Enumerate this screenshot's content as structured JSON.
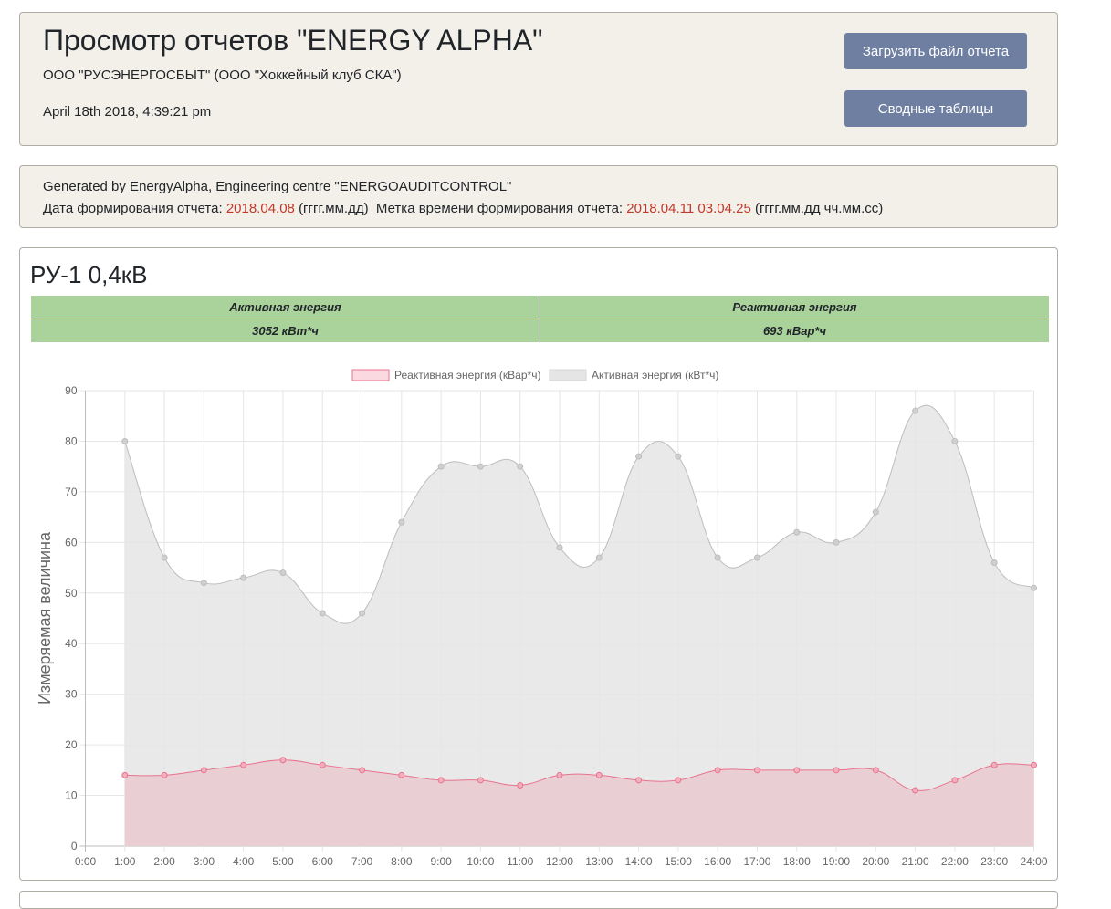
{
  "header": {
    "title": "Просмотр отчетов \"ENERGY ALPHA\"",
    "organization": "ООО \"РУСЭНЕРГОСБЫТ\" (ООО \"Хоккейный клуб СКА\")",
    "datetime": "April 18th 2018, 4:39:21 pm",
    "upload_button": "Загрузить файл отчета",
    "summary_button": "Сводные таблицы"
  },
  "generated": {
    "line1": "Generated by EnergyAlpha, Engineering centre \"ENERGOAUDITCONTROL\"",
    "date_label": "Дата формирования отчета:",
    "date_value": "2018.04.08",
    "date_format": "(гггг.мм.дд)",
    "timestamp_label": "Метка времени формирования отчета:",
    "timestamp_value": "2018.04.11 03.04.25",
    "timestamp_format": "(гггг.мм.дд чч.мм.сс)"
  },
  "section": {
    "title": "РУ-1 0,4кВ",
    "active_label": "Активная энергия",
    "active_value": "3052 кВт*ч",
    "reactive_label": "Реактивная энергия",
    "reactive_value": "693 кВар*ч"
  },
  "chart_data": {
    "type": "area",
    "ylabel": "Измеряемая величина",
    "xlabel": "",
    "ylim": [
      0,
      90
    ],
    "yticks": [
      0,
      10,
      20,
      30,
      40,
      50,
      60,
      70,
      80,
      90
    ],
    "x_tick_labels": [
      "0:00",
      "1:00",
      "2:00",
      "3:00",
      "4:00",
      "5:00",
      "6:00",
      "7:00",
      "8:00",
      "9:00",
      "10:00",
      "11:00",
      "12:00",
      "13:00",
      "14:00",
      "15:00",
      "16:00",
      "17:00",
      "18:00",
      "19:00",
      "20:00",
      "21:00",
      "22:00",
      "23:00",
      "24:00"
    ],
    "categories": [
      "1:00",
      "2:00",
      "3:00",
      "4:00",
      "5:00",
      "6:00",
      "7:00",
      "8:00",
      "9:00",
      "10:00",
      "11:00",
      "12:00",
      "13:00",
      "14:00",
      "15:00",
      "16:00",
      "17:00",
      "18:00",
      "19:00",
      "20:00",
      "21:00",
      "22:00",
      "23:00",
      "24:00"
    ],
    "grid": true,
    "legend_position": "top",
    "series": [
      {
        "name": "Реактивная энергия (кВар*ч)",
        "color": "#e8738f",
        "fill": "#e9c9cf",
        "values": [
          14,
          14,
          15,
          16,
          17,
          16,
          15,
          14,
          13,
          13,
          12,
          14,
          14,
          13,
          13,
          15,
          15,
          15,
          15,
          15,
          11,
          13,
          16,
          16
        ]
      },
      {
        "name": "Активная энергия (кВт*ч)",
        "color": "#bdbdbd",
        "fill": "#e5e5e5",
        "values": [
          80,
          57,
          52,
          53,
          54,
          46,
          46,
          64,
          75,
          75,
          75,
          59,
          57,
          77,
          77,
          57,
          57,
          62,
          60,
          66,
          86,
          80,
          56,
          51
        ]
      }
    ]
  }
}
